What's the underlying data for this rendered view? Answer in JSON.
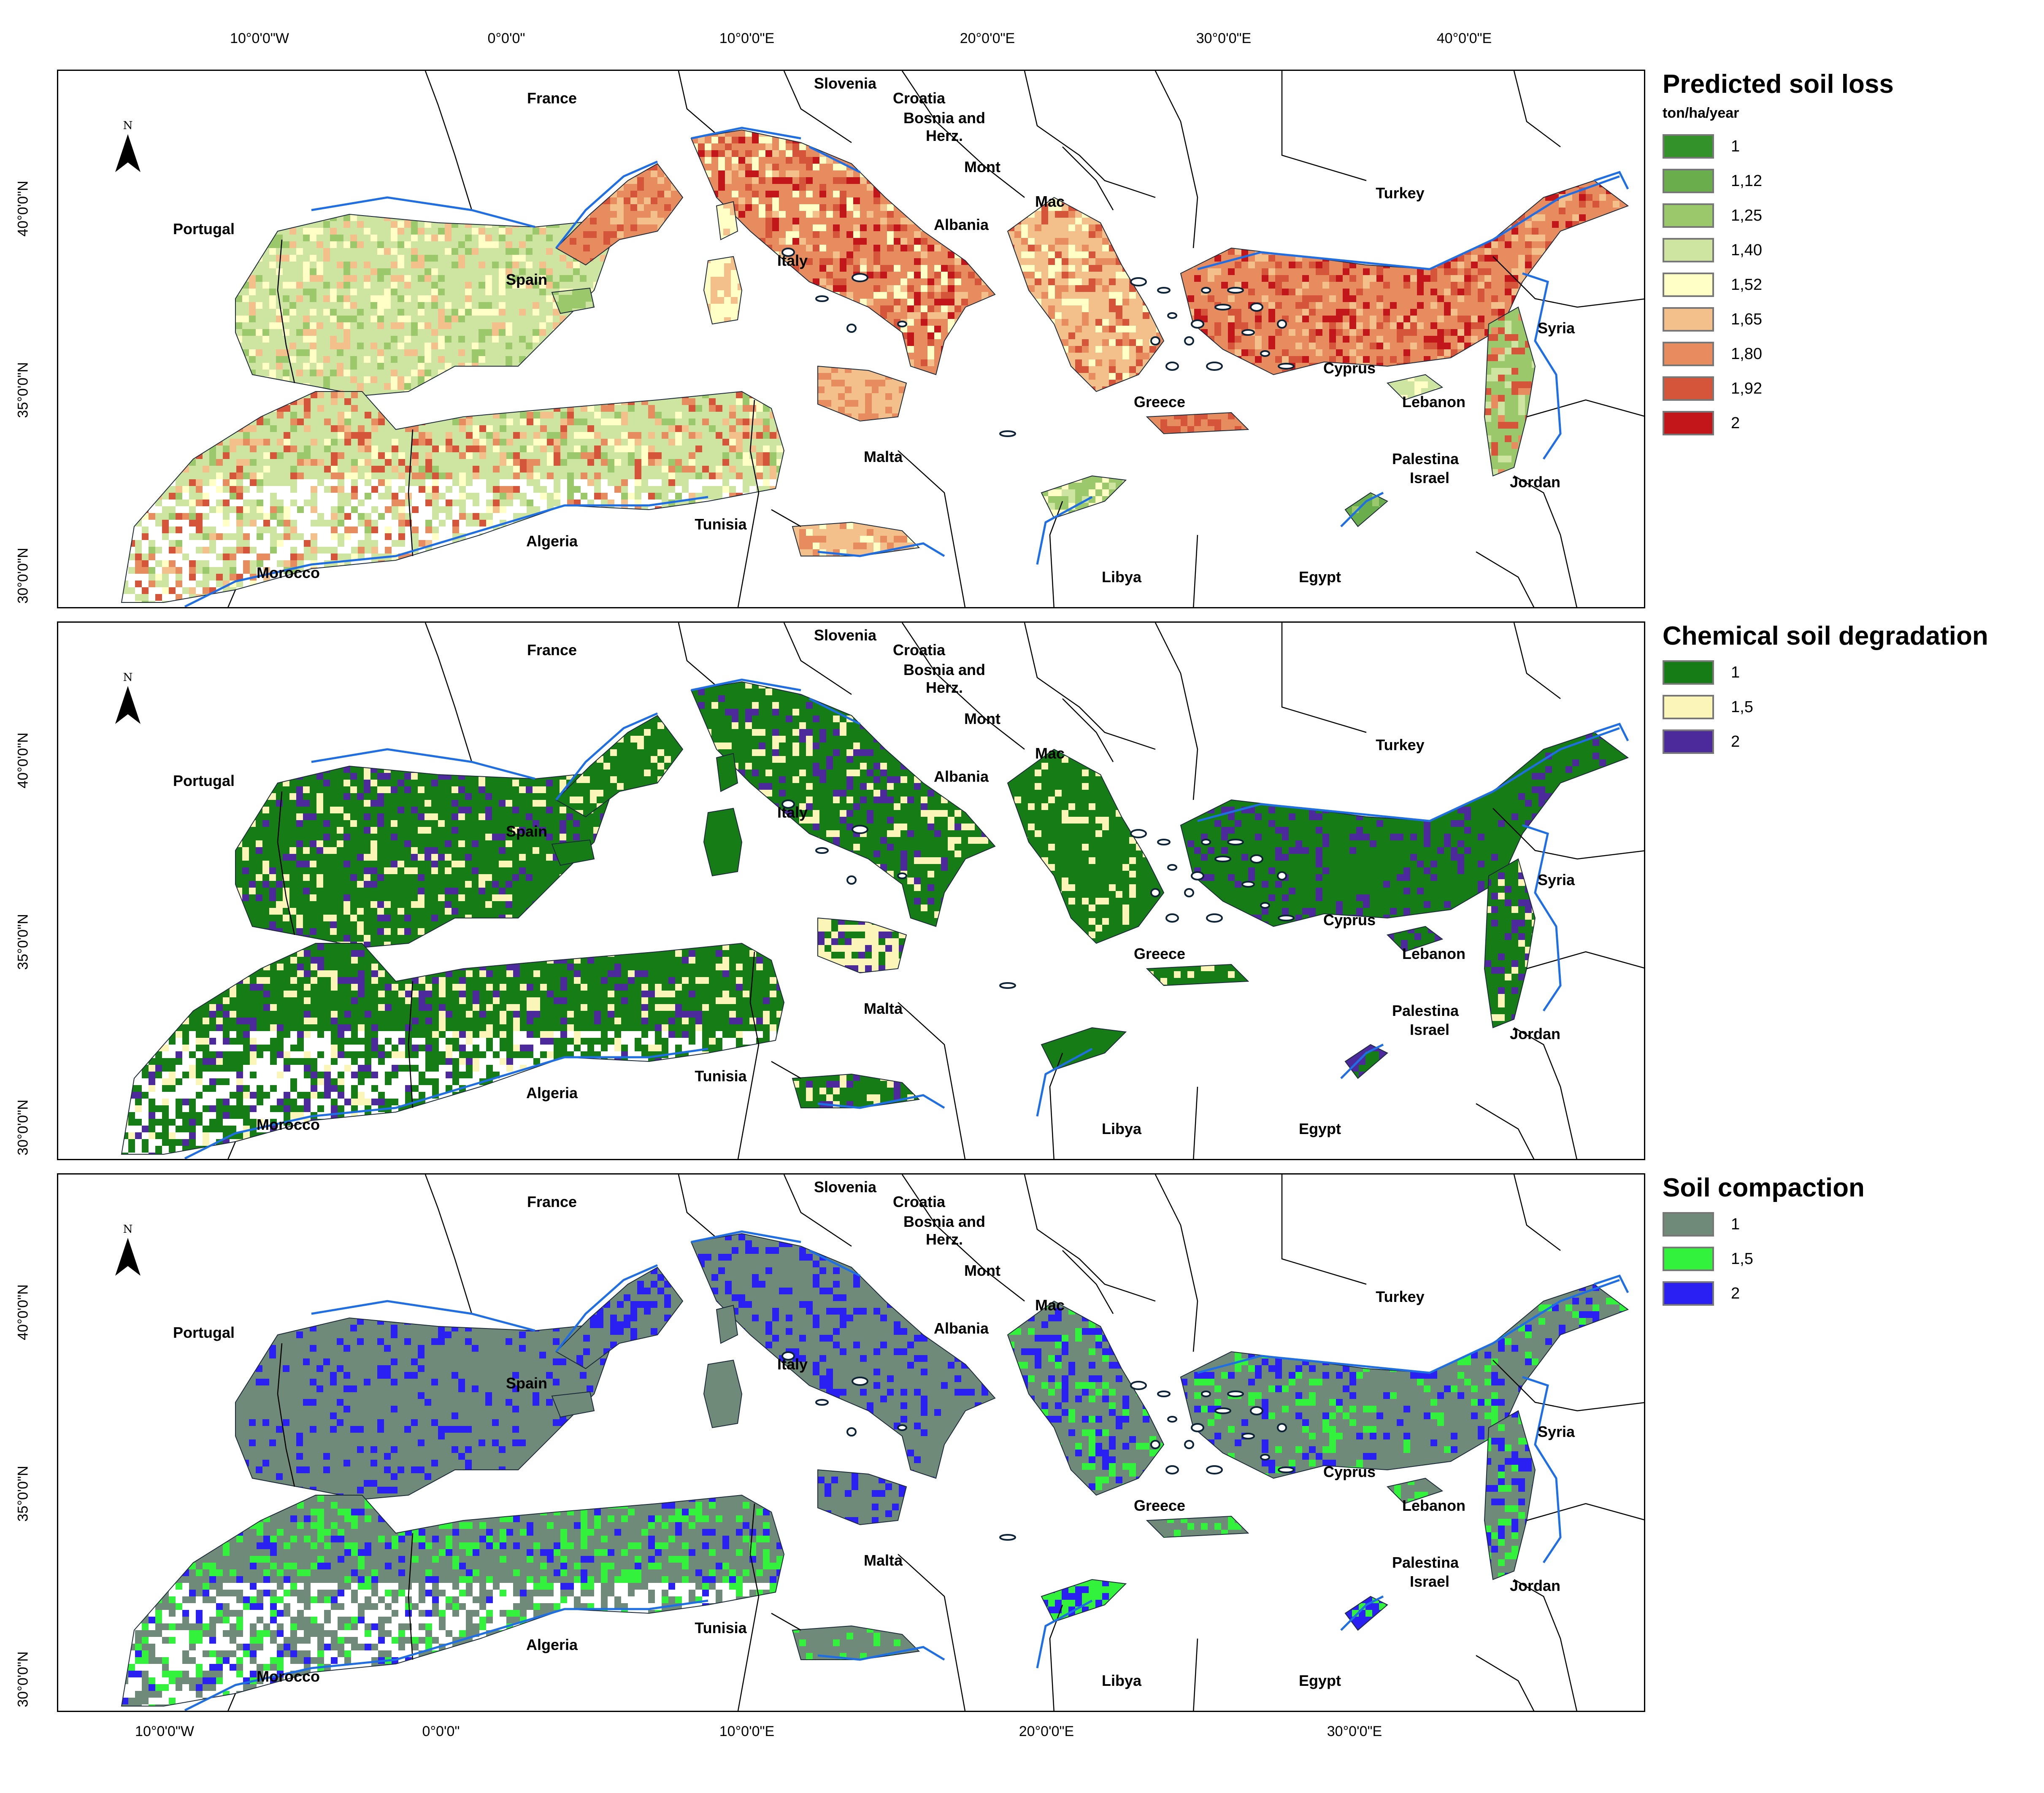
{
  "axes": {
    "top_ticks": [
      "10°0'0\"W",
      "0°0'0\"",
      "10°0'0\"E",
      "20°0'0\"E",
      "30°0'0\"E",
      "40°0'0\"E"
    ],
    "left_ticks": [
      "40°0'0\"N",
      "35°0'0\"N",
      "30°0'0\"N"
    ],
    "bottom_ticks": [
      "10°0'0\"W",
      "0°0'0\"",
      "10°0'0\"E",
      "20°0'0\"E",
      "30°0'0\"E"
    ]
  },
  "north_arrow": {
    "letter": "N",
    "icon": "north-arrow-icon"
  },
  "countries": {
    "france": "France",
    "slovenia": "Slovenia",
    "croatia": "Croatia",
    "bosnia_line1": "Bosnia and",
    "bosnia_line2": "Herz.",
    "mont": "Mont",
    "mac": "Mac",
    "albania": "Albania",
    "turkey": "Turkey",
    "portugal": "Portugal",
    "spain": "Spain",
    "italy": "Italy",
    "syria": "Syria",
    "cyprus": "Cyprus",
    "greece": "Greece",
    "lebanon": "Lebanon",
    "malta": "Malta",
    "palestina": "Palestina",
    "israel": "Israel",
    "jordan": "Jordan",
    "algeria": "Algeria",
    "tunisia": "Tunisia",
    "morocco": "Morocco",
    "libya": "Libya",
    "egypt": "Egypt"
  },
  "panels": [
    {
      "title": "Predicted soil loss",
      "unit": "ton/ha/year",
      "legend": [
        {
          "label": "1",
          "color": "#33922a"
        },
        {
          "label": "1,12",
          "color": "#69ad4c"
        },
        {
          "label": "1,25",
          "color": "#9cc86c"
        },
        {
          "label": "1,40",
          "color": "#cde5a0"
        },
        {
          "label": "1,52",
          "color": "#ffffc6"
        },
        {
          "label": "1,65",
          "color": "#f3bf8a"
        },
        {
          "label": "1,80",
          "color": "#e78c5e"
        },
        {
          "label": "1,92",
          "color": "#d4553a"
        },
        {
          "label": "2",
          "color": "#c1161a"
        }
      ]
    },
    {
      "title": "Chemical soil degradation",
      "unit": "",
      "legend": [
        {
          "label": "1",
          "color": "#157c16"
        },
        {
          "label": "1,5",
          "color": "#fbf6b8"
        },
        {
          "label": "2",
          "color": "#4d2a9c"
        }
      ]
    },
    {
      "title": "Soil compaction",
      "unit": "",
      "legend": [
        {
          "label": "1",
          "color": "#6f8a78"
        },
        {
          "label": "1,5",
          "color": "#33f23b"
        },
        {
          "label": "2",
          "color": "#2b20f2"
        }
      ]
    }
  ],
  "colors": {
    "water_line": "#1e6ee6",
    "border_line": "#000000"
  }
}
